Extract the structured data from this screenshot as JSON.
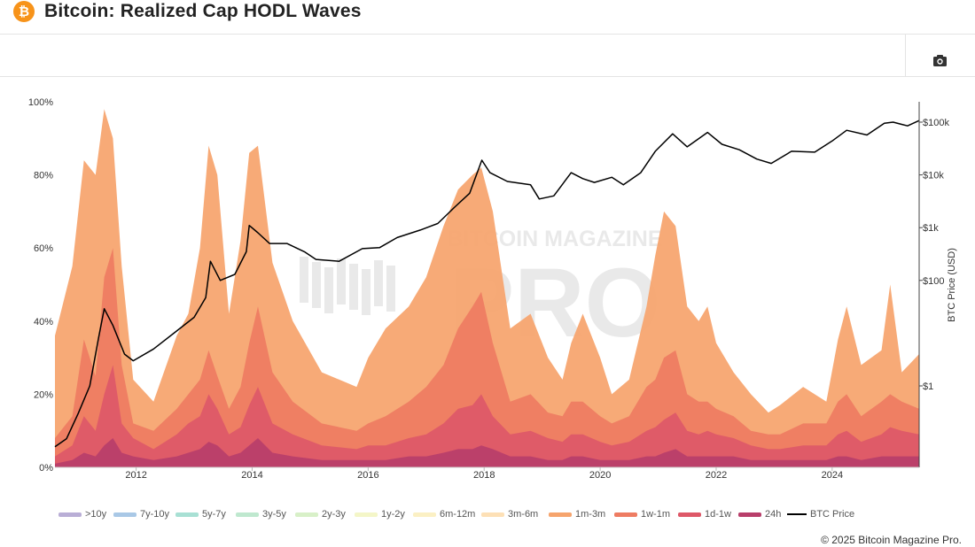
{
  "header": {
    "title": "Bitcoin: Realized Cap HODL Waves",
    "logo_symbol": "₿"
  },
  "toolbar": {
    "camera_icon": "camera-icon"
  },
  "watermark": {
    "line1": "BITCOIN MAGAZINE",
    "line2": "PRO"
  },
  "colors": {
    "layer_1m_3m": "#f6a46d",
    "layer_1w_1m": "#ee7c62",
    "layer_1d_1w": "#de5868",
    "layer_24h": "#b83e6a",
    "btc_price": "#000000"
  },
  "footer": {
    "copyright": "© 2025 Bitcoin Magazine Pro."
  },
  "chart_data": {
    "type": "area",
    "title": "Bitcoin: Realized Cap HODL Waves",
    "ylabel_left": "",
    "ylabel_right": "BTC Price (USD)",
    "ylim_left": [
      0,
      100
    ],
    "y_ticks_left": [
      "0%",
      "20%",
      "40%",
      "60%",
      "80%",
      "100%"
    ],
    "y_ticks_right": [
      "$1",
      "$100",
      "$1k",
      "$10k",
      "$100k"
    ],
    "x_ticks": [
      "2012",
      "2014",
      "2016",
      "2018",
      "2020",
      "2022",
      "2024"
    ],
    "xlim": [
      2010.6,
      2025.5
    ],
    "stacking": "cumulative, from 0% upward: 24h, 1d-1w, 1w-1m, 1m-3m; older bands are negligible at this zoom",
    "x": [
      2010.6,
      2010.9,
      2011.1,
      2011.3,
      2011.45,
      2011.6,
      2011.75,
      2011.95,
      2012.3,
      2012.7,
      2012.9,
      2013.1,
      2013.25,
      2013.4,
      2013.6,
      2013.8,
      2013.95,
      2014.1,
      2014.35,
      2014.7,
      2015.2,
      2015.8,
      2016.0,
      2016.3,
      2016.7,
      2017.0,
      2017.3,
      2017.55,
      2017.8,
      2017.95,
      2018.15,
      2018.45,
      2018.8,
      2019.1,
      2019.35,
      2019.5,
      2019.7,
      2020.0,
      2020.2,
      2020.5,
      2020.8,
      2020.95,
      2021.1,
      2021.3,
      2021.5,
      2021.7,
      2021.85,
      2022.0,
      2022.3,
      2022.6,
      2022.9,
      2023.1,
      2023.5,
      2023.9,
      2024.1,
      2024.25,
      2024.5,
      2024.85,
      2025.0,
      2025.2,
      2025.5
    ],
    "series": [
      {
        "name": "24h",
        "values": [
          1,
          2,
          4,
          3,
          6,
          8,
          4,
          3,
          2,
          3,
          4,
          5,
          7,
          6,
          3,
          4,
          6,
          8,
          4,
          3,
          2,
          2,
          2,
          2,
          3,
          3,
          4,
          5,
          5,
          6,
          5,
          3,
          3,
          2,
          2,
          3,
          3,
          2,
          2,
          2,
          3,
          3,
          4,
          5,
          3,
          3,
          3,
          3,
          3,
          2,
          2,
          2,
          2,
          2,
          3,
          3,
          2,
          3,
          3,
          3,
          3
        ]
      },
      {
        "name": "1d-1w",
        "values": [
          3,
          6,
          14,
          10,
          20,
          28,
          12,
          8,
          5,
          9,
          12,
          14,
          20,
          16,
          9,
          11,
          17,
          22,
          12,
          9,
          6,
          5,
          6,
          6,
          8,
          9,
          12,
          16,
          17,
          20,
          14,
          9,
          10,
          8,
          7,
          9,
          9,
          7,
          6,
          7,
          10,
          11,
          13,
          15,
          10,
          9,
          10,
          9,
          8,
          6,
          5,
          5,
          6,
          6,
          9,
          10,
          7,
          9,
          11,
          10,
          9
        ]
      },
      {
        "name": "1w-1m",
        "values": [
          8,
          14,
          35,
          25,
          52,
          60,
          28,
          12,
          10,
          16,
          20,
          24,
          32,
          25,
          16,
          22,
          34,
          44,
          26,
          18,
          12,
          10,
          12,
          14,
          18,
          22,
          28,
          38,
          44,
          48,
          34,
          18,
          20,
          15,
          14,
          18,
          18,
          14,
          12,
          14,
          22,
          24,
          30,
          32,
          20,
          18,
          18,
          16,
          14,
          10,
          9,
          9,
          12,
          12,
          18,
          20,
          14,
          18,
          20,
          18,
          16
        ]
      },
      {
        "name": "1m-3m",
        "values": [
          36,
          55,
          84,
          80,
          98,
          90,
          55,
          24,
          18,
          36,
          42,
          60,
          88,
          80,
          42,
          62,
          86,
          88,
          56,
          40,
          26,
          22,
          30,
          38,
          44,
          52,
          66,
          76,
          80,
          82,
          70,
          38,
          42,
          30,
          24,
          34,
          42,
          30,
          20,
          24,
          44,
          58,
          70,
          66,
          44,
          40,
          44,
          34,
          26,
          20,
          15,
          17,
          22,
          18,
          35,
          44,
          28,
          32,
          50,
          26,
          31
        ]
      }
    ],
    "btc_price": {
      "name": "BTC Price",
      "x": [
        2010.6,
        2010.8,
        2011.0,
        2011.2,
        2011.35,
        2011.45,
        2011.6,
        2011.8,
        2011.95,
        2012.3,
        2012.7,
        2013.0,
        2013.2,
        2013.28,
        2013.45,
        2013.7,
        2013.9,
        2013.95,
        2014.1,
        2014.3,
        2014.6,
        2014.9,
        2015.1,
        2015.5,
        2015.9,
        2016.2,
        2016.5,
        2016.9,
        2017.2,
        2017.5,
        2017.75,
        2017.96,
        2018.1,
        2018.4,
        2018.8,
        2018.95,
        2019.2,
        2019.5,
        2019.7,
        2019.9,
        2020.2,
        2020.4,
        2020.7,
        2020.95,
        2021.25,
        2021.5,
        2021.85,
        2022.1,
        2022.4,
        2022.7,
        2022.95,
        2023.3,
        2023.7,
        2024.0,
        2024.25,
        2024.6,
        2024.9,
        2025.05,
        2025.3,
        2025.5
      ],
      "values": [
        0.07,
        0.1,
        0.3,
        1,
        8,
        29,
        14,
        4,
        3,
        5,
        11,
        20,
        47,
        230,
        100,
        130,
        350,
        1100,
        800,
        500,
        500,
        350,
        250,
        230,
        400,
        420,
        650,
        900,
        1200,
        2500,
        4500,
        19000,
        11000,
        7500,
        6500,
        3500,
        4000,
        11000,
        8500,
        7200,
        9000,
        6500,
        11000,
        28000,
        60000,
        34000,
        64000,
        38000,
        30000,
        20000,
        16500,
        28000,
        27000,
        44000,
        70000,
        57000,
        95000,
        100000,
        85000,
        107000
      ]
    },
    "legend": [
      ">10y",
      "7y-10y",
      "5y-7y",
      "3y-5y",
      "2y-3y",
      "1y-2y",
      "6m-12m",
      "3m-6m",
      "1m-3m",
      "1w-1m",
      "1d-1w",
      "24h",
      "BTC Price"
    ],
    "legend_colors": [
      "#b9aed6",
      "#a9c8e6",
      "#a8e0d4",
      "#bfe8cf",
      "#d8f0c8",
      "#f4f6c8",
      "#fbf0c4",
      "#fde0b6",
      "#f6a46d",
      "#ee7c62",
      "#de5868",
      "#b83e6a",
      "#000000"
    ],
    "legend_placement": "bottom"
  }
}
